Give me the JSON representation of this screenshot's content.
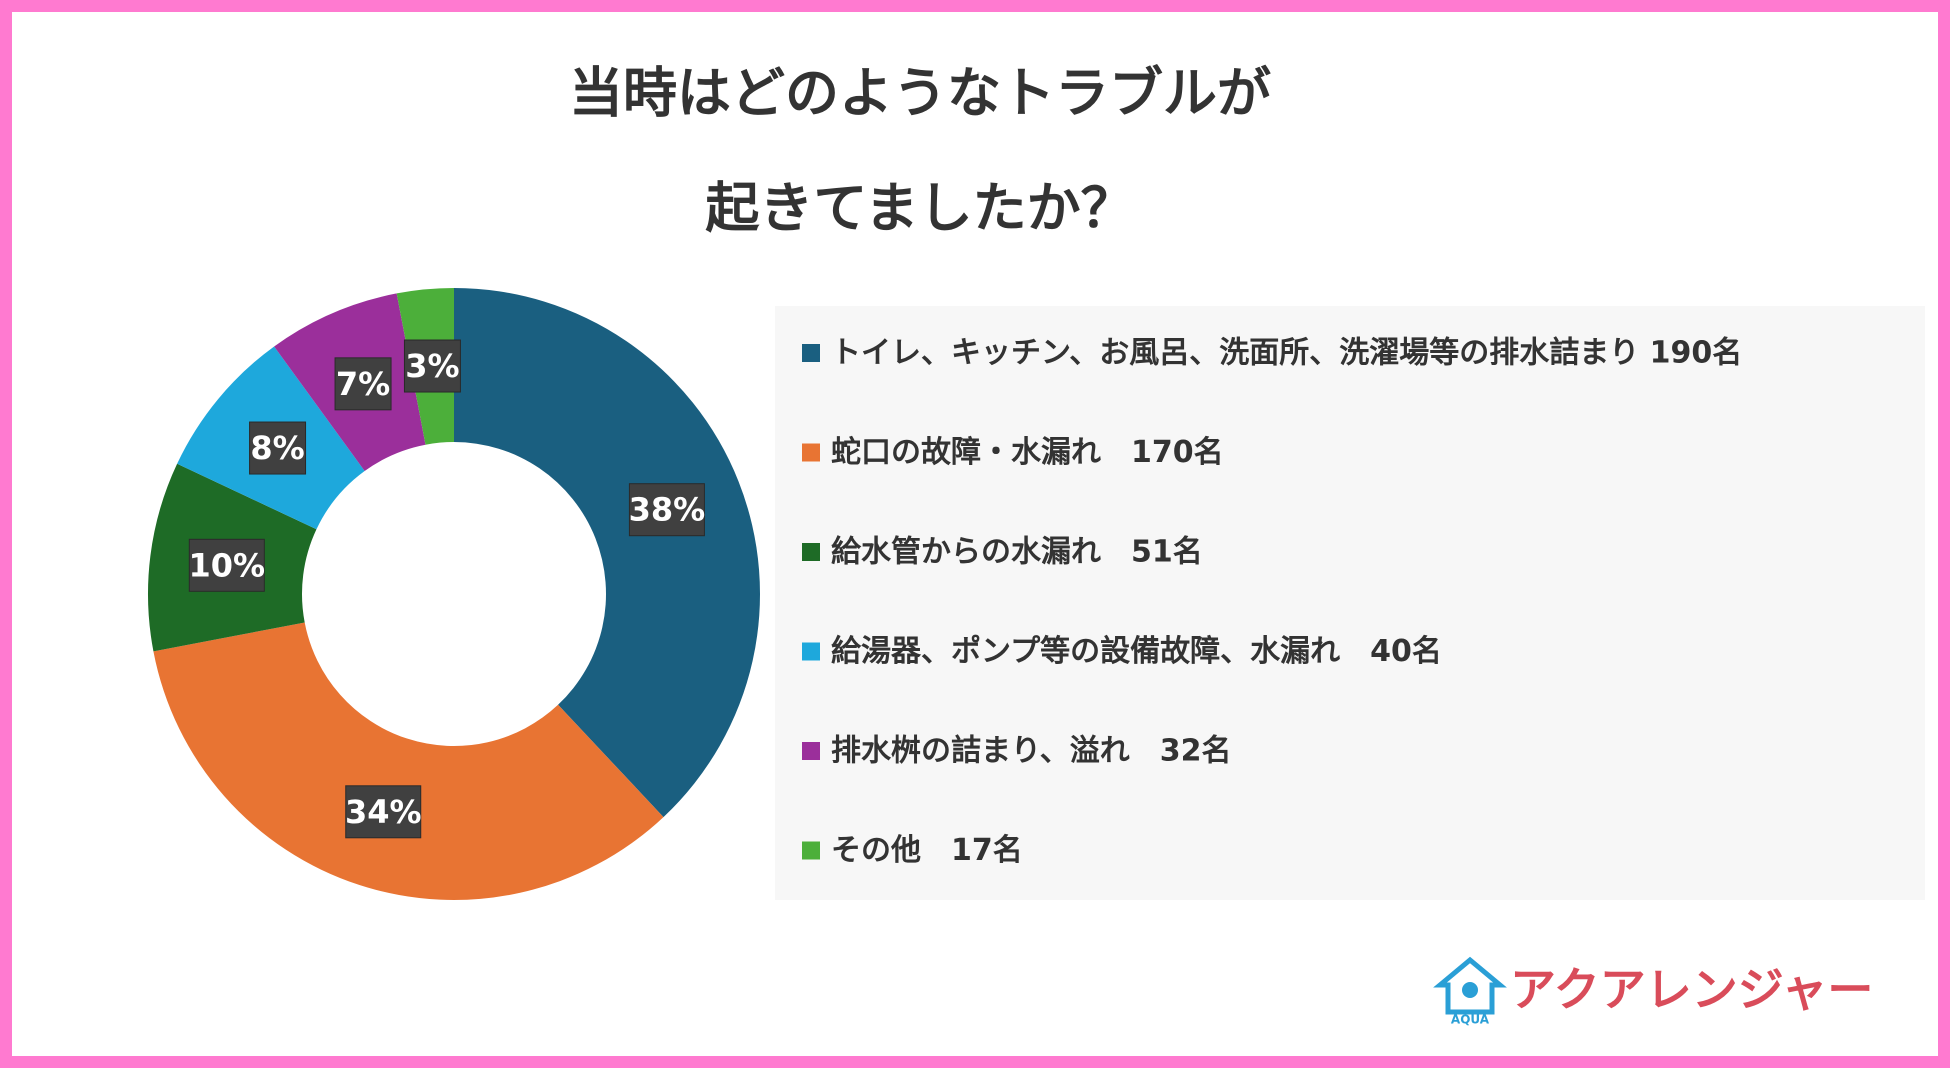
{
  "chart_data": {
    "type": "donut",
    "title": [
      "当時はどのようなトラブルが",
      "起きてましたか？"
    ],
    "categories": [
      "トイレ、キッチン、お風呂、洗面所、洗濯場等の排水詰まり 190名",
      "蛇口の故障・水漏れ　170名",
      "給水管からの水漏れ　51名",
      "給湯器、ポンプ等の設備故障、水漏れ　40名",
      "排水桝の詰まり、溢れ　32名",
      "その他　17名"
    ],
    "values": [
      38,
      34,
      10,
      8,
      7,
      3
    ],
    "value_labels": [
      "38%",
      "34%",
      "10%",
      "8%",
      "7%",
      "3%"
    ],
    "colors": [
      "#1a5f80",
      "#e87433",
      "#1e6b26",
      "#1ea8dc",
      "#9b2f9b",
      "#4caf3a"
    ]
  },
  "logo": {
    "text": "アクアレンジャー",
    "mark": "AQUA"
  }
}
